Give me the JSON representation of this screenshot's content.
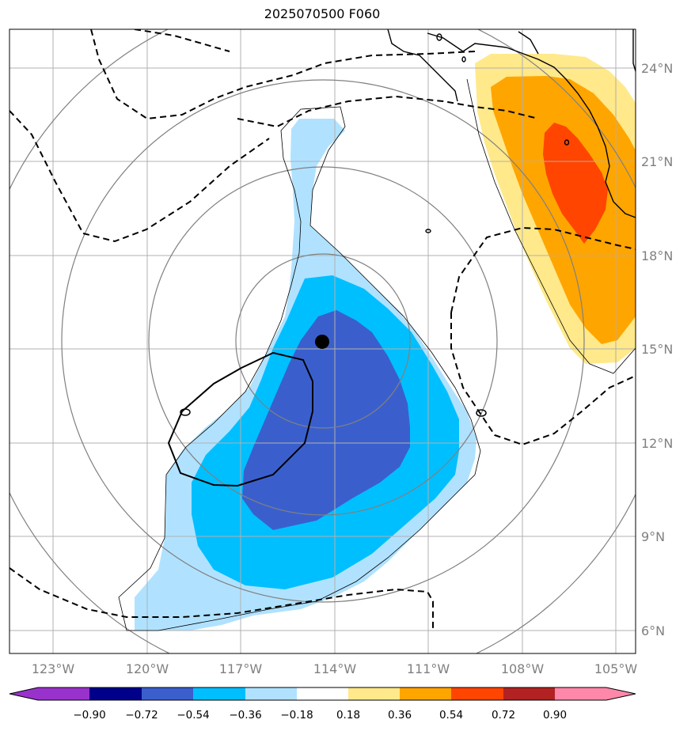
{
  "title": "2025070500 F060",
  "lat_labels": [
    "24°N",
    "21°N",
    "18°N",
    "15°N",
    "12°N",
    "9°N",
    "6°N"
  ],
  "lon_labels": [
    "123°W",
    "120°W",
    "117°W",
    "114°W",
    "111°W",
    "108°W",
    "105°W"
  ],
  "colorbar": {
    "ticks": [
      "−0.90",
      "−0.72",
      "−0.54",
      "−0.36",
      "−0.18",
      "0.18",
      "0.36",
      "0.54",
      "0.72",
      "0.90"
    ],
    "colors": [
      "#9932cc",
      "#00008b",
      "#3a5fcd",
      "#00bfff",
      "#b0e2ff",
      "#ffffff",
      "#ffe98a",
      "#ffa500",
      "#ff4500",
      "#b22222",
      "#ff88aa"
    ]
  },
  "storm_center": {
    "lon": -114.4,
    "lat": 15.2
  },
  "colors": {
    "grid": "#b0b0b0",
    "labels": "#808080"
  }
}
